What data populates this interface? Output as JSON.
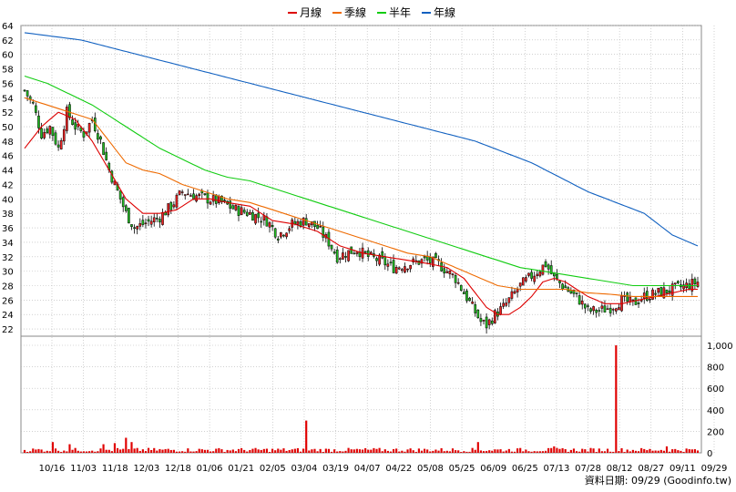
{
  "chart_data": {
    "type": "candlestick",
    "legend": [
      {
        "name": "月線",
        "color": "#dd0000"
      },
      {
        "name": "季線",
        "color": "#ee6a00"
      },
      {
        "name": "半年",
        "color": "#11cc11"
      },
      {
        "name": "年線",
        "color": "#1060c0"
      }
    ],
    "price_axis": {
      "min": 21,
      "max": 64,
      "step": 2
    },
    "volume_axis": {
      "min": 0,
      "max": 1000,
      "ticks": [
        0,
        200,
        400,
        600,
        800,
        1000
      ],
      "tick_labels": [
        "0",
        "200",
        "400",
        "600",
        "800",
        "1,000"
      ]
    },
    "x_labels": [
      "10/16",
      "11/03",
      "11/18",
      "12/03",
      "12/18",
      "01/06",
      "01/21",
      "02/05",
      "03/04",
      "03/19",
      "04/07",
      "04/22",
      "05/08",
      "05/25",
      "06/09",
      "06/25",
      "07/13",
      "07/28",
      "08/12",
      "08/27",
      "09/11",
      "09/29"
    ],
    "n_bars": 240,
    "close_anchors": [
      [
        0,
        55
      ],
      [
        3,
        53
      ],
      [
        6,
        49
      ],
      [
        9,
        50
      ],
      [
        12,
        47
      ],
      [
        15,
        52
      ],
      [
        18,
        50
      ],
      [
        21,
        49
      ],
      [
        24,
        51
      ],
      [
        27,
        48
      ],
      [
        30,
        44
      ],
      [
        33,
        41
      ],
      [
        36,
        38
      ],
      [
        39,
        36
      ],
      [
        42,
        36.5
      ],
      [
        45,
        37
      ],
      [
        48,
        37.5
      ],
      [
        52,
        39
      ],
      [
        56,
        41
      ],
      [
        60,
        40.5
      ],
      [
        65,
        40
      ],
      [
        70,
        39.5
      ],
      [
        75,
        38.5
      ],
      [
        80,
        38
      ],
      [
        86,
        37
      ],
      [
        90,
        35
      ],
      [
        95,
        36.5
      ],
      [
        100,
        37
      ],
      [
        104,
        36
      ],
      [
        108,
        34
      ],
      [
        111,
        32
      ],
      [
        114,
        32.5
      ],
      [
        118,
        33
      ],
      [
        122,
        32
      ],
      [
        126,
        31.5
      ],
      [
        131,
        30.5
      ],
      [
        136,
        31
      ],
      [
        142,
        31.5
      ],
      [
        147,
        31
      ],
      [
        150,
        30
      ],
      [
        153,
        29
      ],
      [
        156,
        27
      ],
      [
        159,
        25
      ],
      [
        162,
        23
      ],
      [
        164,
        22.5
      ],
      [
        167,
        24
      ],
      [
        170,
        25
      ],
      [
        173,
        26.5
      ],
      [
        176,
        28
      ],
      [
        179,
        29
      ],
      [
        182,
        30
      ],
      [
        185,
        31
      ],
      [
        188,
        29
      ],
      [
        191,
        28
      ],
      [
        194,
        27
      ],
      [
        197,
        26
      ],
      [
        200,
        24.5
      ],
      [
        204,
        24.5
      ],
      [
        208,
        25
      ],
      [
        212,
        26
      ],
      [
        216,
        25.5
      ],
      [
        220,
        26.5
      ],
      [
        225,
        27
      ],
      [
        230,
        27.5
      ],
      [
        235,
        28
      ],
      [
        239,
        28.5
      ]
    ],
    "ma_month": [
      [
        0,
        47
      ],
      [
        6,
        50
      ],
      [
        12,
        52
      ],
      [
        18,
        51
      ],
      [
        24,
        48
      ],
      [
        30,
        44
      ],
      [
        36,
        40
      ],
      [
        42,
        38
      ],
      [
        48,
        38
      ],
      [
        54,
        38.5
      ],
      [
        60,
        40
      ],
      [
        66,
        40
      ],
      [
        72,
        39.5
      ],
      [
        80,
        39
      ],
      [
        88,
        37
      ],
      [
        96,
        36.5
      ],
      [
        104,
        35.5
      ],
      [
        112,
        33.5
      ],
      [
        120,
        32.5
      ],
      [
        128,
        32
      ],
      [
        136,
        31.5
      ],
      [
        144,
        31
      ],
      [
        150,
        30.5
      ],
      [
        156,
        29
      ],
      [
        160,
        27
      ],
      [
        164,
        25
      ],
      [
        168,
        24
      ],
      [
        172,
        24
      ],
      [
        176,
        25
      ],
      [
        180,
        26.5
      ],
      [
        184,
        28.5
      ],
      [
        188,
        29
      ],
      [
        192,
        28.5
      ],
      [
        196,
        27.5
      ],
      [
        200,
        26.5
      ],
      [
        206,
        25.5
      ],
      [
        212,
        25.5
      ],
      [
        218,
        26
      ],
      [
        224,
        26.5
      ],
      [
        230,
        27
      ],
      [
        236,
        27.5
      ],
      [
        239,
        27.5
      ]
    ],
    "ma_quarter": [
      [
        0,
        54
      ],
      [
        8,
        53
      ],
      [
        16,
        52
      ],
      [
        24,
        51
      ],
      [
        30,
        48
      ],
      [
        36,
        45
      ],
      [
        42,
        44
      ],
      [
        48,
        43.5
      ],
      [
        56,
        42
      ],
      [
        64,
        41
      ],
      [
        72,
        40
      ],
      [
        80,
        39.5
      ],
      [
        88,
        38.5
      ],
      [
        96,
        37.5
      ],
      [
        104,
        36.5
      ],
      [
        112,
        35.5
      ],
      [
        120,
        34.5
      ],
      [
        128,
        33.5
      ],
      [
        136,
        32.5
      ],
      [
        144,
        32
      ],
      [
        150,
        31
      ],
      [
        156,
        30
      ],
      [
        162,
        29
      ],
      [
        168,
        28
      ],
      [
        176,
        27.5
      ],
      [
        184,
        27.5
      ],
      [
        192,
        27.5
      ],
      [
        200,
        27
      ],
      [
        208,
        26.8
      ],
      [
        216,
        26.5
      ],
      [
        224,
        26.5
      ],
      [
        232,
        26.5
      ],
      [
        239,
        26.5
      ]
    ],
    "ma_half": [
      [
        0,
        57
      ],
      [
        8,
        56
      ],
      [
        16,
        54.5
      ],
      [
        24,
        53
      ],
      [
        32,
        51
      ],
      [
        40,
        49
      ],
      [
        48,
        47
      ],
      [
        56,
        45.5
      ],
      [
        64,
        44
      ],
      [
        72,
        43
      ],
      [
        80,
        42.5
      ],
      [
        88,
        41.5
      ],
      [
        96,
        40.5
      ],
      [
        104,
        39.5
      ],
      [
        112,
        38.5
      ],
      [
        120,
        37.5
      ],
      [
        128,
        36.5
      ],
      [
        136,
        35.5
      ],
      [
        144,
        34.5
      ],
      [
        152,
        33.5
      ],
      [
        160,
        32.5
      ],
      [
        168,
        31.5
      ],
      [
        176,
        30.5
      ],
      [
        184,
        30
      ],
      [
        192,
        29.5
      ],
      [
        200,
        29
      ],
      [
        208,
        28.5
      ],
      [
        216,
        28
      ],
      [
        224,
        28
      ],
      [
        232,
        28
      ],
      [
        239,
        28
      ]
    ],
    "ma_year": [
      [
        0,
        63
      ],
      [
        20,
        62
      ],
      [
        40,
        60
      ],
      [
        60,
        58
      ],
      [
        80,
        56
      ],
      [
        100,
        54
      ],
      [
        120,
        52
      ],
      [
        140,
        50
      ],
      [
        160,
        48
      ],
      [
        180,
        45
      ],
      [
        200,
        41
      ],
      [
        220,
        38
      ],
      [
        230,
        35
      ],
      [
        239,
        33.5
      ]
    ],
    "volume_spikes": [
      [
        10,
        100
      ],
      [
        16,
        80
      ],
      [
        28,
        80
      ],
      [
        32,
        90
      ],
      [
        36,
        140
      ],
      [
        38,
        100
      ],
      [
        100,
        300
      ],
      [
        161,
        100
      ],
      [
        188,
        60
      ],
      [
        210,
        1000
      ],
      [
        228,
        60
      ]
    ],
    "credit": "資料日期: 09/29  (Goodinfo.tw)"
  }
}
